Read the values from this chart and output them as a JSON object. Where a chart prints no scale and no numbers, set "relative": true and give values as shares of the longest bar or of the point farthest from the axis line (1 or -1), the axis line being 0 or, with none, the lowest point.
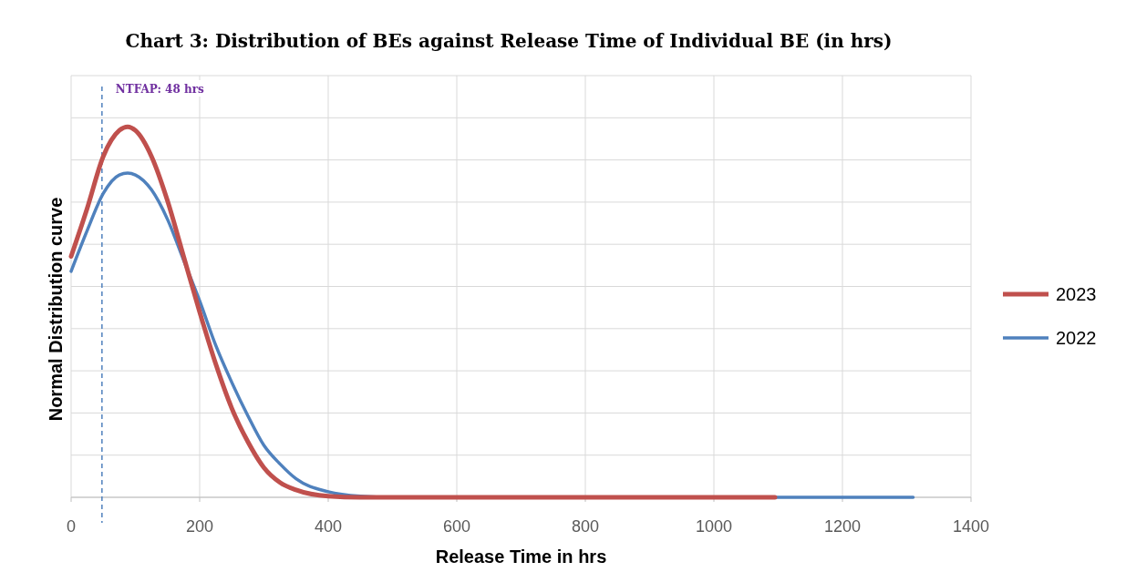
{
  "chart_data": {
    "type": "line",
    "title": "Chart 3: Distribution of BEs against Release Time of Individual BE (in hrs)",
    "xlabel": "Release Time in hrs",
    "ylabel": "Normal Distribution curve",
    "relative": true,
    "xlim": [
      0,
      1400
    ],
    "xticks": [
      0,
      200,
      400,
      600,
      800,
      1000,
      1200,
      1400
    ],
    "grid": true,
    "legend": "right",
    "marker": "none",
    "line_style": "solid",
    "ref_lines": [
      {
        "axis": "x",
        "value": 48,
        "label": "NTFAP: 48 hrs",
        "color": "#4f81bd",
        "line_style": "dashed"
      }
    ],
    "series": [
      {
        "name": "2023",
        "color": "#c0504d",
        "x": [
          0,
          25,
          50,
          75,
          88,
          100,
          125,
          150,
          175,
          200,
          225,
          250,
          275,
          300,
          325,
          350,
          400,
          450,
          600,
          800,
          1000,
          1095
        ],
        "values": [
          0.65,
          0.78,
          0.92,
          0.99,
          1.0,
          0.99,
          0.92,
          0.8,
          0.65,
          0.5,
          0.36,
          0.24,
          0.15,
          0.08,
          0.04,
          0.02,
          0.003,
          0,
          0,
          0,
          0,
          0
        ]
      },
      {
        "name": "2022",
        "color": "#4f81bd",
        "x": [
          0,
          25,
          50,
          75,
          88,
          100,
          125,
          150,
          175,
          200,
          225,
          250,
          275,
          300,
          325,
          350,
          400,
          450,
          500,
          800,
          1000,
          1310
        ],
        "values": [
          0.61,
          0.72,
          0.82,
          0.87,
          0.875,
          0.87,
          0.83,
          0.75,
          0.64,
          0.53,
          0.41,
          0.31,
          0.22,
          0.14,
          0.09,
          0.05,
          0.015,
          0.003,
          0,
          0,
          0,
          0
        ]
      }
    ]
  }
}
